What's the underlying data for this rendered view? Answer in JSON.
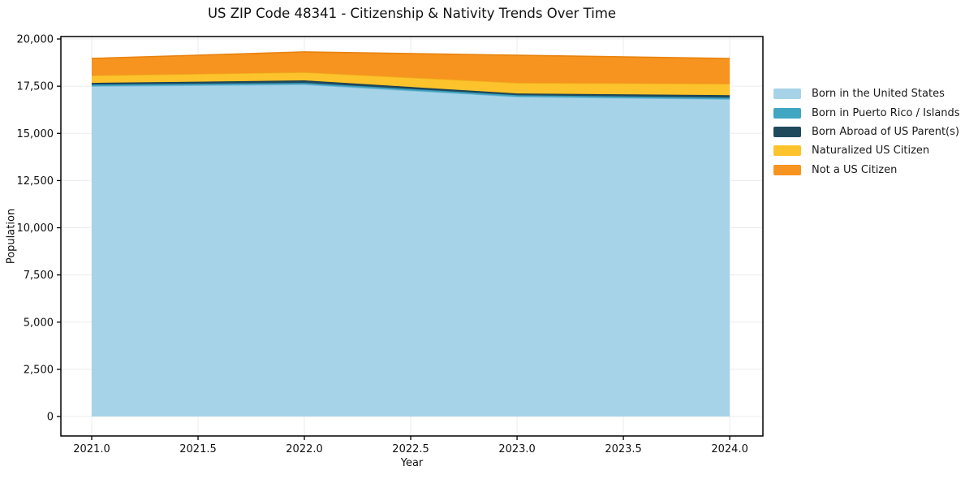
{
  "title": "US ZIP Code 48341 - Citizenship & Nativity Trends Over Time",
  "chart_data": {
    "type": "area",
    "stacked": true,
    "title": "US ZIP Code 48341 - Citizenship & Nativity Trends Over Time",
    "xlabel": "Year",
    "ylabel": "Population",
    "x": [
      2021,
      2022,
      2023,
      2024
    ],
    "xlim": [
      2020.855,
      2024.156
    ],
    "ylim": [
      -1030,
      20130
    ],
    "x_tick_labels": [
      "2021.0",
      "2021.5",
      "2022.0",
      "2022.5",
      "2023.0",
      "2023.5",
      "2024.0"
    ],
    "y_tick_labels": [
      "0",
      "2,500",
      "5,000",
      "7,500",
      "10,000",
      "12,500",
      "15,000",
      "17,500",
      "20,000"
    ],
    "grid": true,
    "legend_position": "right-outside",
    "series": [
      {
        "name": "Born in the United States",
        "values": [
          17500,
          17590,
          16940,
          16810
        ],
        "color": "#A7D3E9",
        "edge": "#7FBCD9"
      },
      {
        "name": "Born in Puerto Rico / Islands",
        "values": [
          85,
          85,
          85,
          85
        ],
        "color": "#41A6C2",
        "edge": "#3595B4"
      },
      {
        "name": "Born Abroad of US Parent(s)",
        "values": [
          90,
          130,
          90,
          130
        ],
        "color": "#1F4A5E",
        "edge": "#1B3F52"
      },
      {
        "name": "Naturalized US Citizen",
        "values": [
          390,
          430,
          560,
          600
        ],
        "color": "#FCC32C",
        "edge": "#EFB11D"
      },
      {
        "name": "Not a US Citizen",
        "values": [
          905,
          1080,
          1465,
          1340
        ],
        "color": "#F7941F",
        "edge": "#E8830E"
      }
    ]
  },
  "colors": {
    "grid": "#ececec",
    "spine": "#000000",
    "tick": "#000000",
    "tick_label": "#111111",
    "background": "#ffffff"
  }
}
